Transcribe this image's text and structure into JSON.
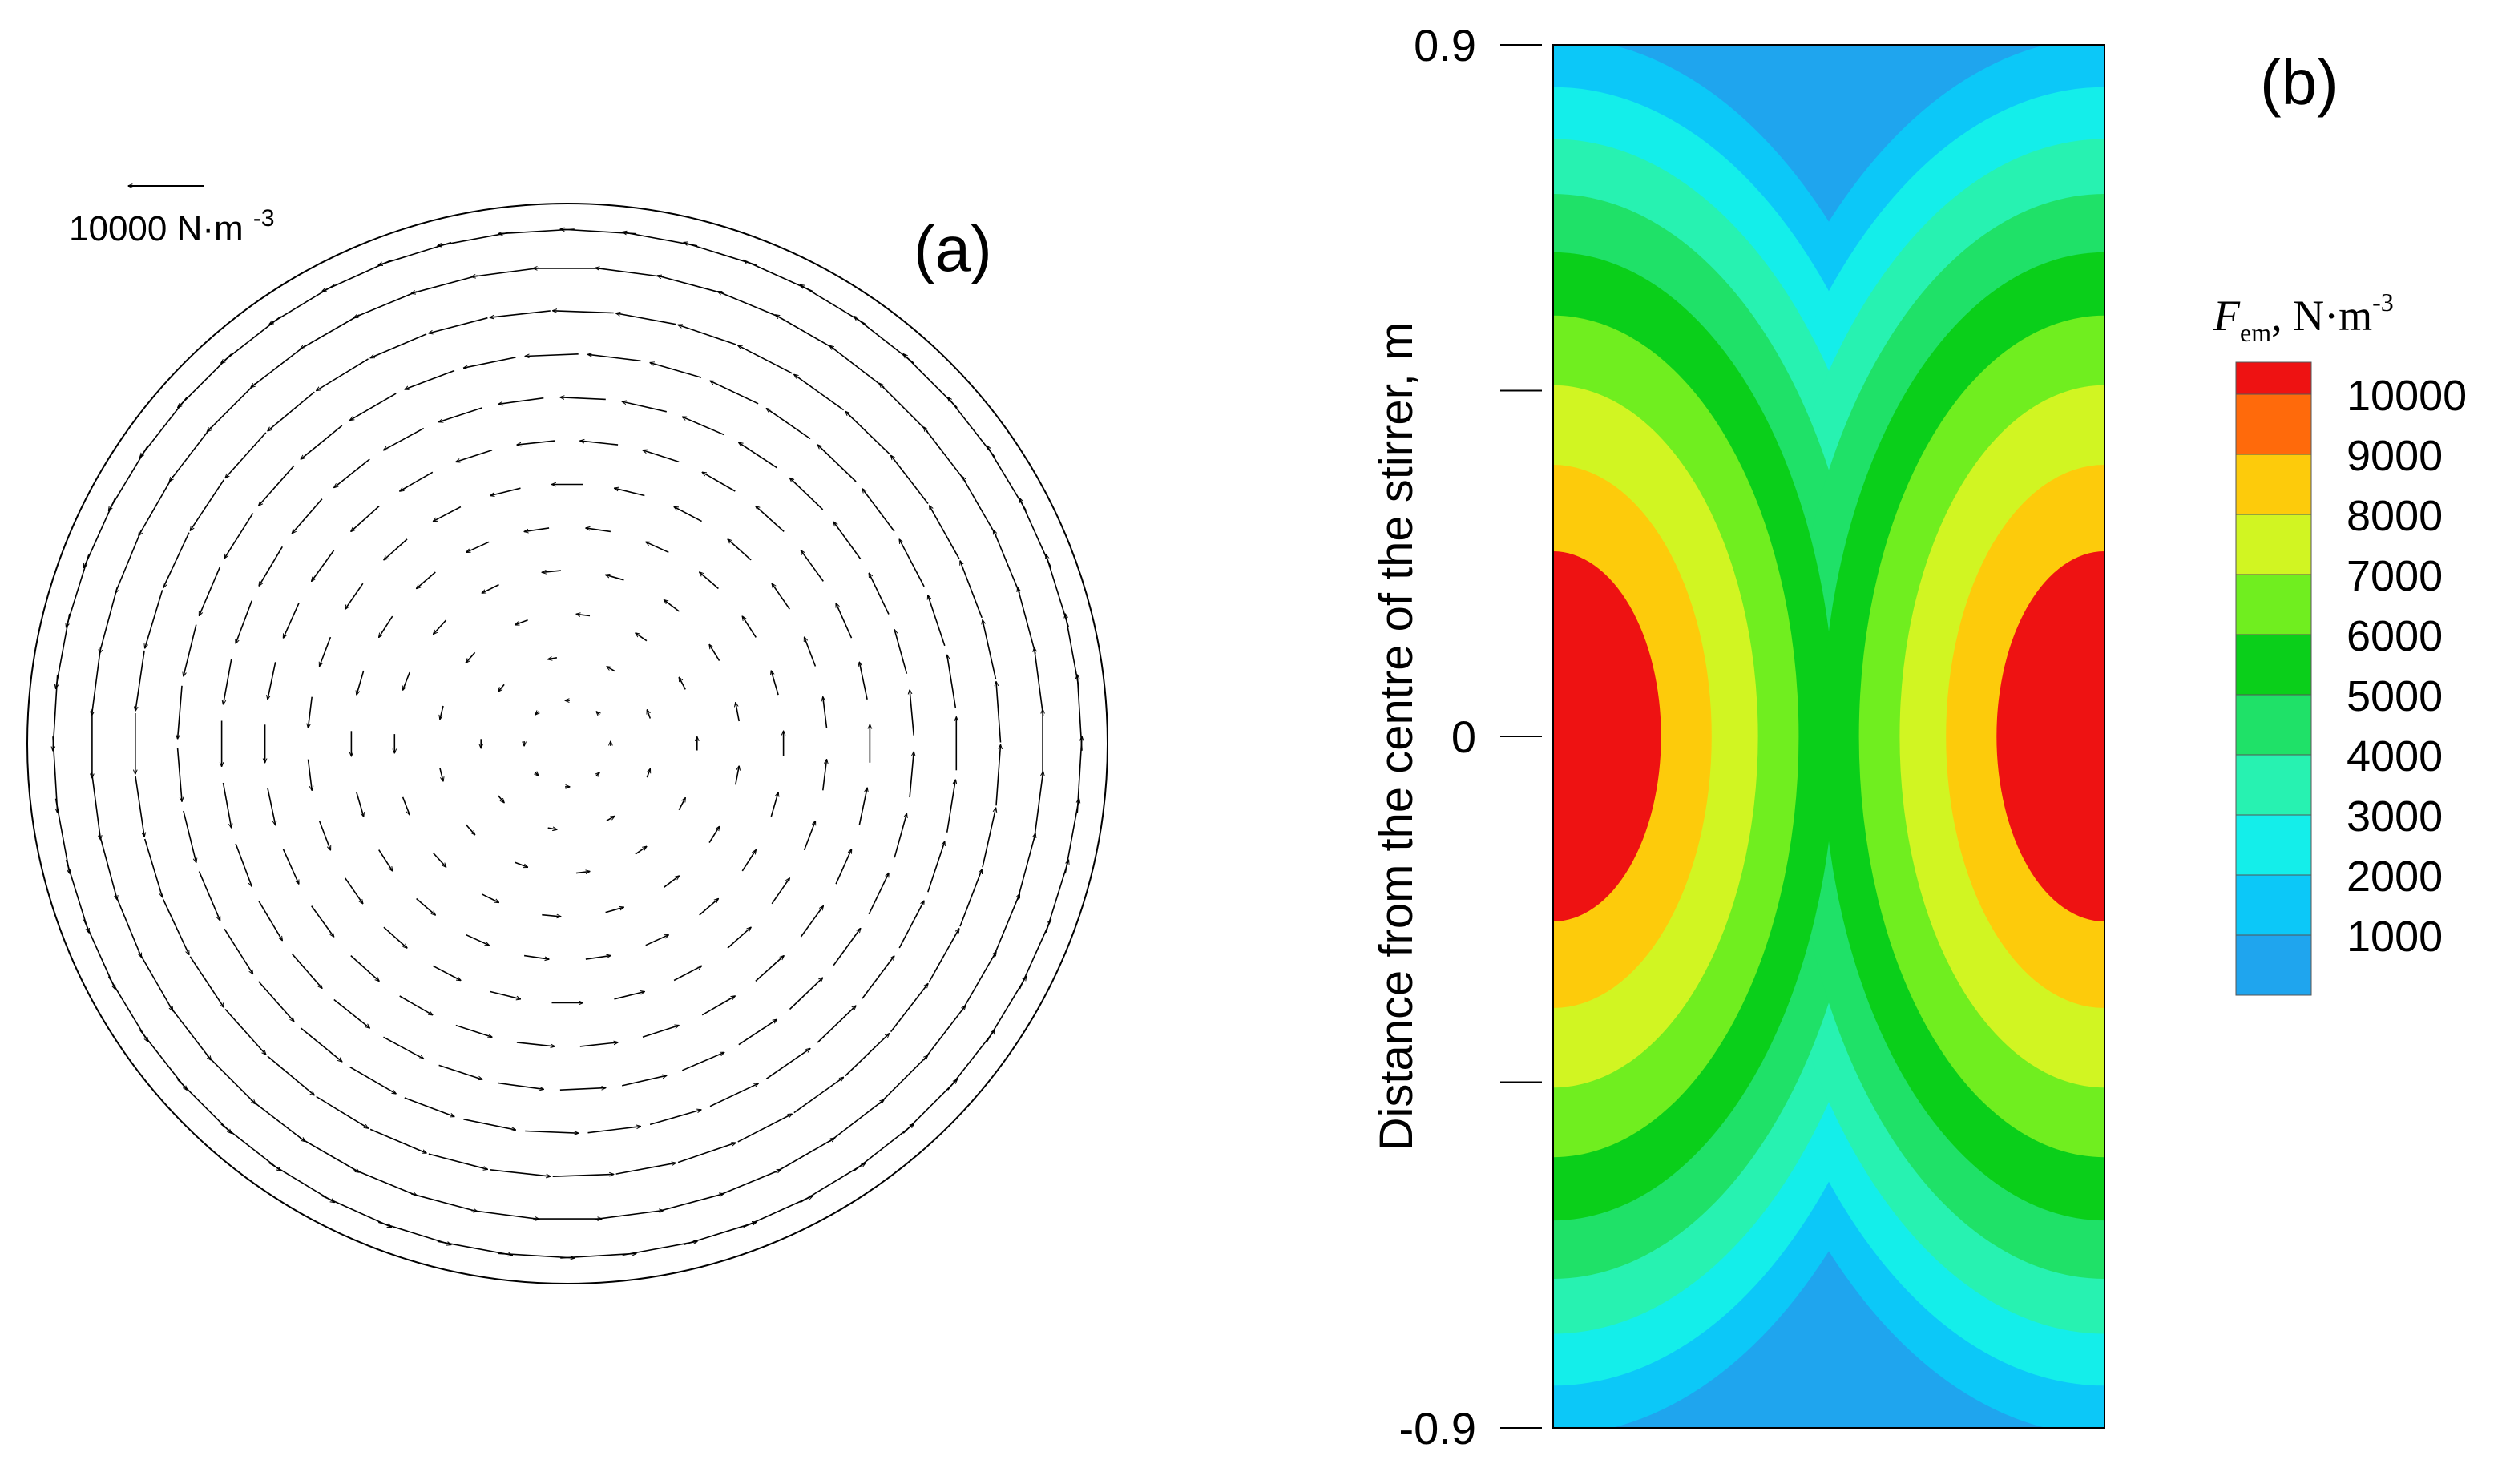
{
  "chart_data": [
    {
      "type": "vector-field",
      "panel_label": "(a)",
      "reference_vector": {
        "magnitude": 10000,
        "label": "10000 N·m-3",
        "direction": "left"
      },
      "description": "Counter-clockwise (as viewed) rotating Lorentz-force vectors within a circular cross-section; magnitude near 0 at the centre and about 10000 N·m-3 near the wall.",
      "rings": [
        {
          "r_fraction": 0.08,
          "magnitude": 600
        },
        {
          "r_fraction": 0.16,
          "magnitude": 1200
        },
        {
          "r_fraction": 0.24,
          "magnitude": 1800
        },
        {
          "r_fraction": 0.32,
          "magnitude": 2500
        },
        {
          "r_fraction": 0.4,
          "magnitude": 3300
        },
        {
          "r_fraction": 0.48,
          "magnitude": 4100
        },
        {
          "r_fraction": 0.56,
          "magnitude": 5000
        },
        {
          "r_fraction": 0.64,
          "magnitude": 6000
        },
        {
          "r_fraction": 0.72,
          "magnitude": 7000
        },
        {
          "r_fraction": 0.8,
          "magnitude": 8000
        },
        {
          "r_fraction": 0.88,
          "magnitude": 9000
        },
        {
          "r_fraction": 0.95,
          "magnitude": 10000
        }
      ]
    },
    {
      "type": "contour",
      "panel_label": "(b)",
      "ylabel": "Distance from the centre of the stirrer, m",
      "ylim": [
        -0.9,
        0.9
      ],
      "yticks": [
        {
          "value": 0.9,
          "label": "0.9"
        },
        {
          "value": 0.45,
          "label": ""
        },
        {
          "value": 0,
          "label": "0"
        },
        {
          "value": -0.45,
          "label": ""
        },
        {
          "value": -0.9,
          "label": "-0.9"
        }
      ],
      "colorbar": {
        "title_symbol": "F",
        "title_subscript": "em",
        "title_unit_prefix": ", N·m",
        "title_unit_exp": "-3",
        "levels": [
          {
            "value": 1000,
            "label": "1000",
            "color": "#1FA5EE"
          },
          {
            "value": 2000,
            "label": "2000",
            "color": "#0CC8F8"
          },
          {
            "value": 3000,
            "label": "3000",
            "color": "#14EEEA"
          },
          {
            "value": 4000,
            "label": "4000",
            "color": "#27F2B1"
          },
          {
            "value": 5000,
            "label": "5000",
            "color": "#1FE168"
          },
          {
            "value": 6000,
            "label": "6000",
            "color": "#0ACF1A"
          },
          {
            "value": 7000,
            "label": "7000",
            "color": "#70EE1F"
          },
          {
            "value": 8000,
            "label": "8000",
            "color": "#D1F522"
          },
          {
            "value": 9000,
            "label": "9000",
            "color": "#FDCB0B"
          },
          {
            "value": 10000,
            "label": "10000",
            "color": "#FF6A0B"
          }
        ],
        "top_color": "#EE1212"
      },
      "field": {
        "description": "Force magnitude peaks (~10000 N·m-3) at the left and right walls at height 0 and decays toward the centre and toward the ends (±0.9 m).",
        "background_color": "#1FA5EE",
        "peak_value": 10000,
        "peak_height": 0
      }
    }
  ]
}
